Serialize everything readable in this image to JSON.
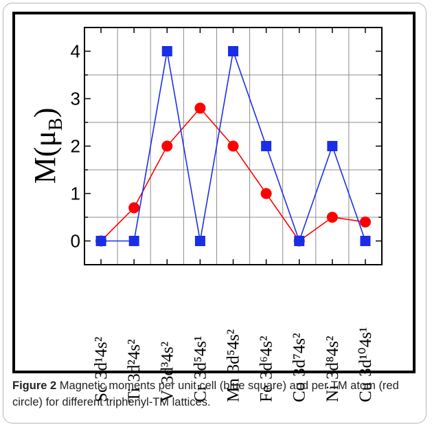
{
  "caption": {
    "label": "Figure 2",
    "text": "Magnetic moments per unit cell (blue square) and per TM atom (red circle) for different triphenyl-TM lattices."
  },
  "chart_data": {
    "type": "line",
    "xlabel": "",
    "ylabel": "M(μB)",
    "ylabel_parts": {
      "main": "M(μ",
      "sub": "B",
      "close": ")"
    },
    "ylim": [
      -0.5,
      4.5
    ],
    "yticks": [
      0,
      1,
      2,
      3,
      4
    ],
    "grid": true,
    "categories": [
      {
        "element": "Sc",
        "config": "3d¹4s²"
      },
      {
        "element": "Ti",
        "config": "3d²4s²"
      },
      {
        "element": "V",
        "config": "3d³4s²"
      },
      {
        "element": "Cr",
        "config": "3d⁵4s¹"
      },
      {
        "element": "Mn",
        "config": "3d⁵4s²"
      },
      {
        "element": "Fe",
        "config": "3d⁶4s²"
      },
      {
        "element": "Co",
        "config": "3d⁷4s²"
      },
      {
        "element": "Ni",
        "config": "3d⁸4s²"
      },
      {
        "element": "Cu",
        "config": "3d¹⁰4s¹"
      }
    ],
    "series": [
      {
        "marker": "square",
        "color": "#1a2ee6",
        "values": [
          0,
          0,
          4,
          0,
          4,
          2,
          0,
          2,
          0
        ]
      },
      {
        "marker": "circle",
        "color": "#ff0000",
        "values": [
          0,
          0.7,
          2,
          2.8,
          2,
          1,
          0,
          0.5,
          0.4
        ]
      }
    ]
  }
}
